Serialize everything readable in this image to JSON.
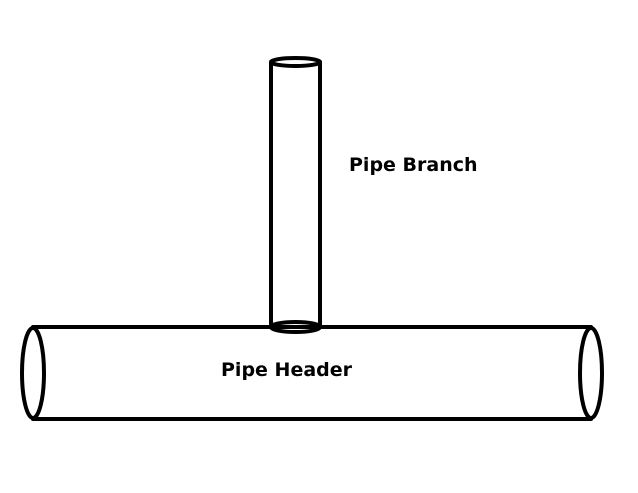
{
  "labels": {
    "branch": "Pipe Branch",
    "header": "Pipe Header"
  },
  "colors": {
    "stroke": "#000000",
    "background": "#ffffff"
  }
}
